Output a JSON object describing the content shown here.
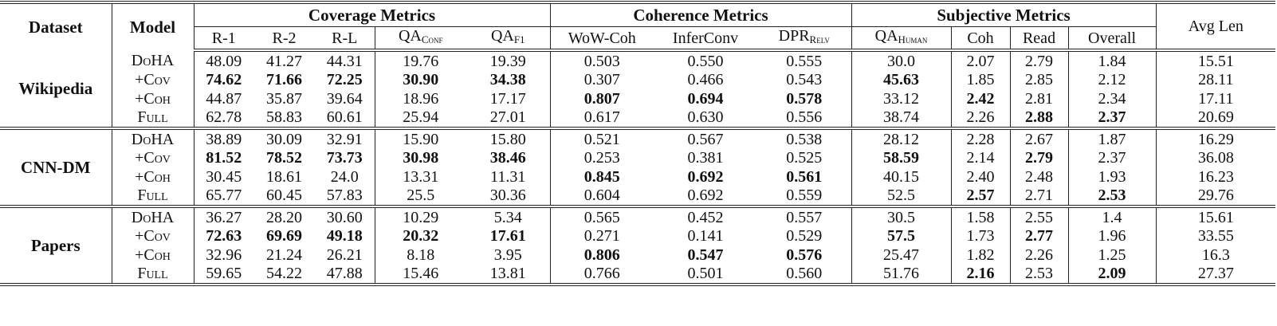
{
  "header": {
    "dataset": "Dataset",
    "model": "Model",
    "groups": [
      "Coverage Metrics",
      "Coherence Metrics",
      "Subjective Metrics"
    ],
    "avg_len": "Avg Len",
    "columns": [
      {
        "base": "R-1",
        "sub": ""
      },
      {
        "base": "R-2",
        "sub": ""
      },
      {
        "base": "R-L",
        "sub": ""
      },
      {
        "base": "QA",
        "sub": "Conf"
      },
      {
        "base": "QA",
        "sub": "F1"
      },
      {
        "base": "WoW-Coh",
        "sub": ""
      },
      {
        "base": "InferConv",
        "sub": ""
      },
      {
        "base": "DPR",
        "sub": "Relv"
      },
      {
        "base": "QA",
        "sub": "Human"
      },
      {
        "base": "Coh",
        "sub": ""
      },
      {
        "base": "Read",
        "sub": ""
      },
      {
        "base": "Overall",
        "sub": ""
      }
    ]
  },
  "groups": [
    {
      "dataset": "Wikipedia",
      "rows": [
        {
          "model": "DoHA",
          "cells": [
            [
              "48.09",
              0
            ],
            [
              "41.27",
              0
            ],
            [
              "44.31",
              0
            ],
            [
              "19.76",
              0
            ],
            [
              "19.39",
              0
            ],
            [
              "0.503",
              0
            ],
            [
              "0.550",
              0
            ],
            [
              "0.555",
              0
            ],
            [
              "30.0",
              0
            ],
            [
              "2.07",
              0
            ],
            [
              "2.79",
              0
            ],
            [
              "1.84",
              0
            ],
            [
              "15.51",
              0
            ]
          ]
        },
        {
          "model": "+Cov",
          "cells": [
            [
              "74.62",
              1
            ],
            [
              "71.66",
              1
            ],
            [
              "72.25",
              1
            ],
            [
              "30.90",
              1
            ],
            [
              "34.38",
              1
            ],
            [
              "0.307",
              0
            ],
            [
              "0.466",
              0
            ],
            [
              "0.543",
              0
            ],
            [
              "45.63",
              1
            ],
            [
              "1.85",
              0
            ],
            [
              "2.85",
              0
            ],
            [
              "2.12",
              0
            ],
            [
              "28.11",
              0
            ]
          ]
        },
        {
          "model": "+Coh",
          "cells": [
            [
              "44.87",
              0
            ],
            [
              "35.87",
              0
            ],
            [
              "39.64",
              0
            ],
            [
              "18.96",
              0
            ],
            [
              "17.17",
              0
            ],
            [
              "0.807",
              1
            ],
            [
              "0.694",
              1
            ],
            [
              "0.578",
              1
            ],
            [
              "33.12",
              0
            ],
            [
              "2.42",
              1
            ],
            [
              "2.81",
              0
            ],
            [
              "2.34",
              0
            ],
            [
              "17.11",
              0
            ]
          ]
        },
        {
          "model": "Full",
          "cells": [
            [
              "62.78",
              0
            ],
            [
              "58.83",
              0
            ],
            [
              "60.61",
              0
            ],
            [
              "25.94",
              0
            ],
            [
              "27.01",
              0
            ],
            [
              "0.617",
              0
            ],
            [
              "0.630",
              0
            ],
            [
              "0.556",
              0
            ],
            [
              "38.74",
              0
            ],
            [
              "2.26",
              0
            ],
            [
              "2.88",
              1
            ],
            [
              "2.37",
              1
            ],
            [
              "20.69",
              0
            ]
          ]
        }
      ]
    },
    {
      "dataset": "CNN-DM",
      "rows": [
        {
          "model": "DoHA",
          "cells": [
            [
              "38.89",
              0
            ],
            [
              "30.09",
              0
            ],
            [
              "32.91",
              0
            ],
            [
              "15.90",
              0
            ],
            [
              "15.80",
              0
            ],
            [
              "0.521",
              0
            ],
            [
              "0.567",
              0
            ],
            [
              "0.538",
              0
            ],
            [
              "28.12",
              0
            ],
            [
              "2.28",
              0
            ],
            [
              "2.67",
              0
            ],
            [
              "1.87",
              0
            ],
            [
              "16.29",
              0
            ]
          ]
        },
        {
          "model": "+Cov",
          "cells": [
            [
              "81.52",
              1
            ],
            [
              "78.52",
              1
            ],
            [
              "73.73",
              1
            ],
            [
              "30.98",
              1
            ],
            [
              "38.46",
              1
            ],
            [
              "0.253",
              0
            ],
            [
              "0.381",
              0
            ],
            [
              "0.525",
              0
            ],
            [
              "58.59",
              1
            ],
            [
              "2.14",
              0
            ],
            [
              "2.79",
              1
            ],
            [
              "2.37",
              0
            ],
            [
              "36.08",
              0
            ]
          ]
        },
        {
          "model": "+Coh",
          "cells": [
            [
              "30.45",
              0
            ],
            [
              "18.61",
              0
            ],
            [
              "24.0",
              0
            ],
            [
              "13.31",
              0
            ],
            [
              "11.31",
              0
            ],
            [
              "0.845",
              1
            ],
            [
              "0.692",
              1
            ],
            [
              "0.561",
              1
            ],
            [
              "40.15",
              0
            ],
            [
              "2.40",
              0
            ],
            [
              "2.48",
              0
            ],
            [
              "1.93",
              0
            ],
            [
              "16.23",
              0
            ]
          ]
        },
        {
          "model": "Full",
          "cells": [
            [
              "65.77",
              0
            ],
            [
              "60.45",
              0
            ],
            [
              "57.83",
              0
            ],
            [
              "25.5",
              0
            ],
            [
              "30.36",
              0
            ],
            [
              "0.604",
              0
            ],
            [
              "0.692",
              0
            ],
            [
              "0.559",
              0
            ],
            [
              "52.5",
              0
            ],
            [
              "2.57",
              1
            ],
            [
              "2.71",
              0
            ],
            [
              "2.53",
              1
            ],
            [
              "29.76",
              0
            ]
          ]
        }
      ]
    },
    {
      "dataset": "Papers",
      "rows": [
        {
          "model": "DoHA",
          "cells": [
            [
              "36.27",
              0
            ],
            [
              "28.20",
              0
            ],
            [
              "30.60",
              0
            ],
            [
              "10.29",
              0
            ],
            [
              "5.34",
              0
            ],
            [
              "0.565",
              0
            ],
            [
              "0.452",
              0
            ],
            [
              "0.557",
              0
            ],
            [
              "30.5",
              0
            ],
            [
              "1.58",
              0
            ],
            [
              "2.55",
              0
            ],
            [
              "1.4",
              0
            ],
            [
              "15.61",
              0
            ]
          ]
        },
        {
          "model": "+Cov",
          "cells": [
            [
              "72.63",
              1
            ],
            [
              "69.69",
              1
            ],
            [
              "49.18",
              1
            ],
            [
              "20.32",
              1
            ],
            [
              "17.61",
              1
            ],
            [
              "0.271",
              0
            ],
            [
              "0.141",
              0
            ],
            [
              "0.529",
              0
            ],
            [
              "57.5",
              1
            ],
            [
              "1.73",
              0
            ],
            [
              "2.77",
              1
            ],
            [
              "1.96",
              0
            ],
            [
              "33.55",
              0
            ]
          ]
        },
        {
          "model": "+Coh",
          "cells": [
            [
              "32.96",
              0
            ],
            [
              "21.24",
              0
            ],
            [
              "26.21",
              0
            ],
            [
              "8.18",
              0
            ],
            [
              "3.95",
              0
            ],
            [
              "0.806",
              1
            ],
            [
              "0.547",
              1
            ],
            [
              "0.576",
              1
            ],
            [
              "25.47",
              0
            ],
            [
              "1.82",
              0
            ],
            [
              "2.26",
              0
            ],
            [
              "1.25",
              0
            ],
            [
              "16.3",
              0
            ]
          ]
        },
        {
          "model": "Full",
          "cells": [
            [
              "59.65",
              0
            ],
            [
              "54.22",
              0
            ],
            [
              "47.88",
              0
            ],
            [
              "15.46",
              0
            ],
            [
              "13.81",
              0
            ],
            [
              "0.766",
              0
            ],
            [
              "0.501",
              0
            ],
            [
              "0.560",
              0
            ],
            [
              "51.76",
              0
            ],
            [
              "2.16",
              1
            ],
            [
              "2.53",
              0
            ],
            [
              "2.09",
              1
            ],
            [
              "27.37",
              0
            ]
          ]
        }
      ]
    }
  ]
}
